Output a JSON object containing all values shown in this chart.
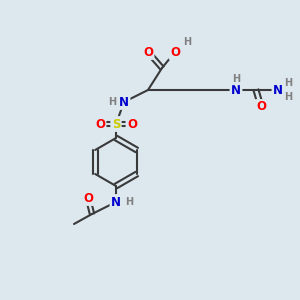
{
  "bg_color": "#dde8ee",
  "atom_colors": {
    "C": "#3a3a3a",
    "H": "#808080",
    "O": "#ff0000",
    "N": "#0000cd",
    "S": "#cccc00"
  },
  "bond_color": "#3a3a3a",
  "bond_width": 1.5,
  "font_size": 8.5,
  "fig_size": [
    3.0,
    3.0
  ],
  "dpi": 100
}
